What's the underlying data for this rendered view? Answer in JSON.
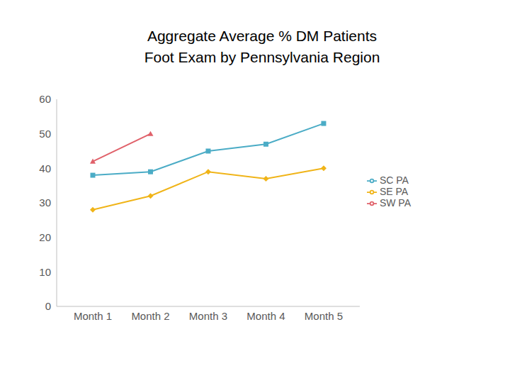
{
  "chart_data": {
    "type": "line",
    "title": "Aggregate Average % DM Patients\nFoot Exam by Pennsylvania Region",
    "categories": [
      "Month 1",
      "Month 2",
      "Month 3",
      "Month 4",
      "Month 5"
    ],
    "series": [
      {
        "name": "SE PA",
        "color": "#f0b418",
        "marker": "diamond",
        "values": [
          28,
          32,
          39,
          37,
          40
        ]
      },
      {
        "name": "SC PA",
        "color": "#4bacc6",
        "marker": "square",
        "values": [
          38,
          39,
          45,
          47,
          53
        ]
      },
      {
        "name": "SW PA",
        "color": "#e0616a",
        "marker": "triangle",
        "values": [
          42,
          50,
          null,
          null,
          null
        ]
      }
    ],
    "ylim": [
      0,
      60
    ],
    "yticks": [
      0,
      10,
      20,
      30,
      40,
      50,
      60
    ],
    "grid": false,
    "legend": "right"
  }
}
